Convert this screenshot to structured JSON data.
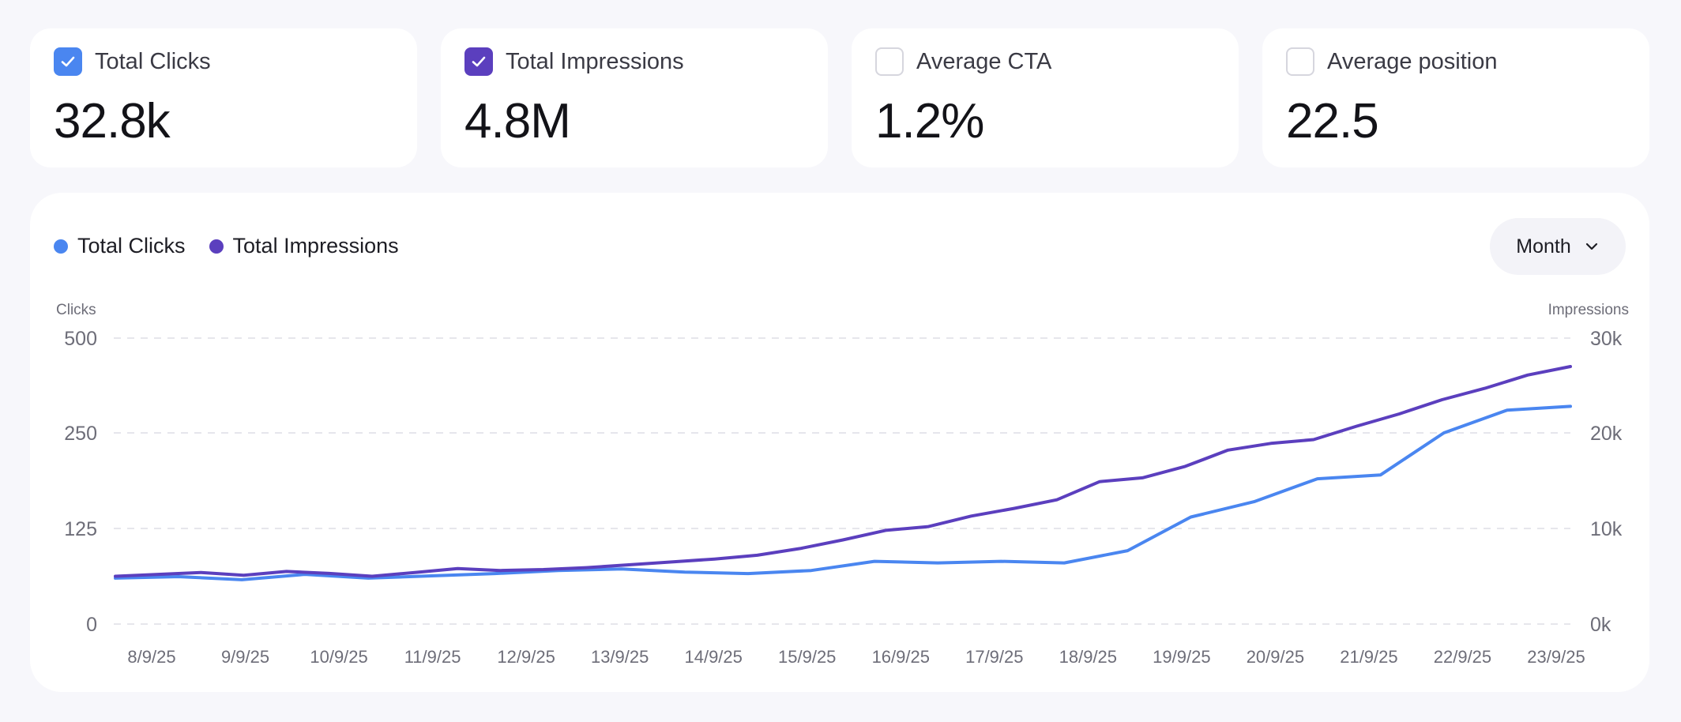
{
  "cards": [
    {
      "label": "Total Clicks",
      "value": "32.8k",
      "checked": true,
      "color": "#4a86f0"
    },
    {
      "label": "Total Impressions",
      "value": "4.8M",
      "checked": true,
      "color": "#5b3fbe"
    },
    {
      "label": "Average CTA",
      "value": "1.2%",
      "checked": false,
      "color": "#d6d6de"
    },
    {
      "label": "Average position",
      "value": "22.5",
      "checked": false,
      "color": "#d6d6de"
    }
  ],
  "legend": [
    {
      "label": "Total Clicks",
      "color": "#4a86f0"
    },
    {
      "label": "Total Impressions",
      "color": "#5b3fbe"
    }
  ],
  "period": {
    "label": "Month",
    "icon": "chevron-down-icon"
  },
  "chart_data": {
    "type": "line",
    "y_left_label": "Clicks",
    "y_right_label": "Impressions",
    "y_left_ticks": [
      "500",
      "250",
      "125",
      "0"
    ],
    "y_right_ticks": [
      "30k",
      "20k",
      "10k",
      "0k"
    ],
    "x_ticks": [
      "8/9/25",
      "9/9/25",
      "10/9/25",
      "11/9/25",
      "12/9/25",
      "13/9/25",
      "14/9/25",
      "15/9/25",
      "16/9/25",
      "17/9/25",
      "18/9/25",
      "19/9/25",
      "20/9/25",
      "21/9/25",
      "22/9/25",
      "23/9/25"
    ],
    "grid": true,
    "series": [
      {
        "name": "Total Clicks",
        "axis": "left",
        "color": "#4a86f0",
        "values": [
          60,
          62,
          58,
          65,
          60,
          63,
          66,
          70,
          72,
          68,
          66,
          70,
          82,
          80,
          82,
          80,
          96,
          140,
          160,
          190,
          195,
          250,
          310,
          320
        ]
      },
      {
        "name": "Total Impressions",
        "axis": "right",
        "color": "#5b3fbe",
        "values": [
          5000,
          5200,
          5400,
          5100,
          5500,
          5300,
          5000,
          5400,
          5800,
          5600,
          5700,
          5900,
          6200,
          6500,
          6800,
          7200,
          7900,
          8800,
          9800,
          10200,
          11300,
          12100,
          13000,
          14900,
          15300,
          16500,
          18200,
          18900,
          19300,
          20700,
          22000,
          23500,
          24700,
          26100,
          27000
        ]
      }
    ]
  }
}
